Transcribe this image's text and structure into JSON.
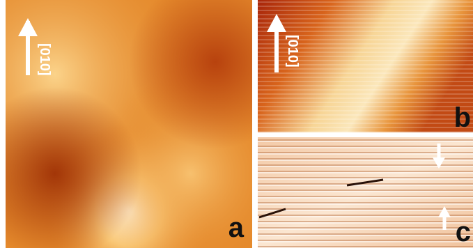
{
  "panels": [
    {
      "label": "a",
      "direction": "[010]"
    },
    {
      "label": "b",
      "direction": "[010]"
    },
    {
      "label": "c"
    }
  ]
}
